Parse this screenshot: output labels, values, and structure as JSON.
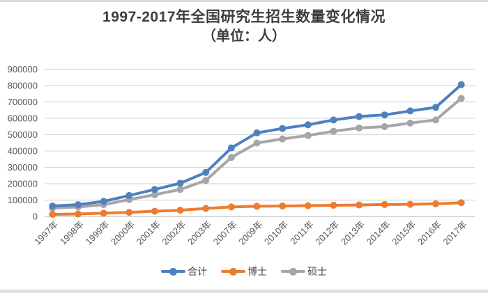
{
  "title": {
    "line1": "1997-2017年全国研究生招生数量变化情况",
    "line2": "（单位：人）"
  },
  "chart_data": {
    "type": "line",
    "title": "1997-2017年全国研究生招生数量变化情况",
    "subtitle": "（单位：人）",
    "xlabel": "",
    "ylabel": "",
    "ylim": [
      0,
      900000
    ],
    "ytick_step": 100000,
    "yticks": [
      0,
      100000,
      200000,
      300000,
      400000,
      500000,
      600000,
      700000,
      800000,
      900000
    ],
    "grid": "horizontal",
    "legend_position": "bottom",
    "categories": [
      "1997年",
      "1998年",
      "1999年",
      "2000年",
      "2001年",
      "2002年",
      "2003年",
      "2007年",
      "2009年",
      "2010年",
      "2011年",
      "2012年",
      "2013年",
      "2014年",
      "2015年",
      "2016年",
      "2017年"
    ],
    "series": [
      {
        "name": "合计",
        "color": "#4e81bd",
        "marker": "circle",
        "values": [
          64000,
          72000,
          92000,
          128000,
          165000,
          203000,
          269000,
          419000,
          511000,
          538000,
          560000,
          590000,
          611000,
          621000,
          645000,
          667000,
          806000
        ]
      },
      {
        "name": "博士",
        "color": "#ed7c31",
        "marker": "circle",
        "values": [
          13000,
          15000,
          20000,
          25000,
          32000,
          38000,
          49000,
          58000,
          62000,
          64000,
          66000,
          68000,
          70000,
          73000,
          74000,
          77000,
          84000
        ]
      },
      {
        "name": "硕士",
        "color": "#a6a6a6",
        "marker": "circle",
        "values": [
          51000,
          58000,
          72000,
          103000,
          133000,
          165000,
          220000,
          361000,
          449000,
          474000,
          495000,
          521000,
          541000,
          549000,
          571000,
          590000,
          722000
        ]
      }
    ]
  },
  "axis_colors": {
    "gridline": "#d9d9d9",
    "zero_line": "#c3c3c3",
    "tick_label": "#595959"
  }
}
